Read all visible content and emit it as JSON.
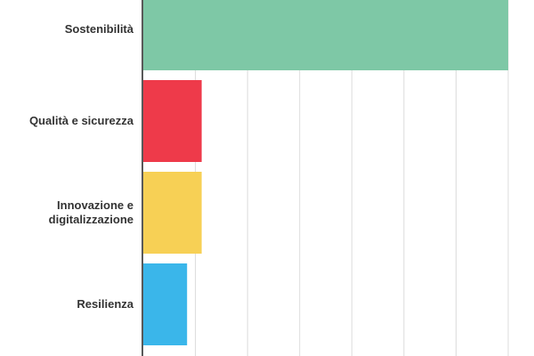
{
  "chart_data": {
    "type": "bar",
    "orientation": "horizontal",
    "categories": [
      [
        "Sostenibilità"
      ],
      [
        "Qualità e sicurezza"
      ],
      [
        "Innovazione e",
        "digitalizzazione"
      ],
      [
        "Resilienza"
      ]
    ],
    "values": [
      100,
      16,
      16,
      12
    ],
    "colors": [
      "#7ec8a6",
      "#ee3a4a",
      "#f7d055",
      "#3ab6ea"
    ],
    "xlim": [
      0,
      100
    ],
    "grid": true,
    "legend": "none"
  }
}
